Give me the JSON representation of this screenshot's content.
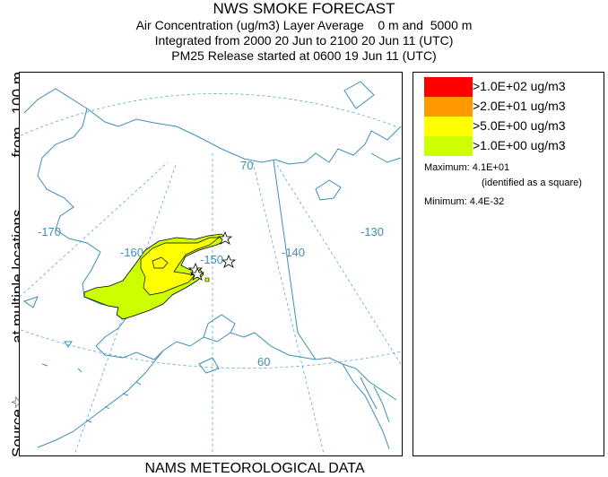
{
  "header": {
    "title": "NWS SMOKE FORECAST",
    "line2": "Air Concentration (ug/m3) Layer Average    0 m and  5000 m",
    "line3": "Integrated from 2000 20 Jun to 2100 20 Jun 11 (UTC)",
    "line4": "PM25 Release started at 0600 19 Jun 11 (UTC)"
  },
  "side_label": {
    "source": "Source",
    "locations": "at multiple locations",
    "from": "from   100 m"
  },
  "map": {
    "lon_labels": [
      "-170",
      "-160",
      "-150",
      "-140",
      "-130"
    ],
    "lat_labels": [
      "70",
      "60"
    ],
    "colors": {
      "coast": "#3d8fb8",
      "grid": "#5aa7cf",
      "contour": "#000000"
    }
  },
  "legend": {
    "items": [
      {
        "label": ">1.0E+02 ug/m3",
        "color": "#ff0000"
      },
      {
        "label": ">2.0E+01 ug/m3",
        "color": "#ff9900"
      },
      {
        "label": ">5.0E+00 ug/m3",
        "color": "#ffff00"
      },
      {
        "label": ">1.0E+00 ug/m3",
        "color": "#ccff00"
      }
    ],
    "maximum": "Maximum: 4.1E+01",
    "max_note": "(identified as a square)",
    "minimum": "Minimum: 4.4E-32"
  },
  "footer": "NAMS METEOROLOGICAL DATA"
}
